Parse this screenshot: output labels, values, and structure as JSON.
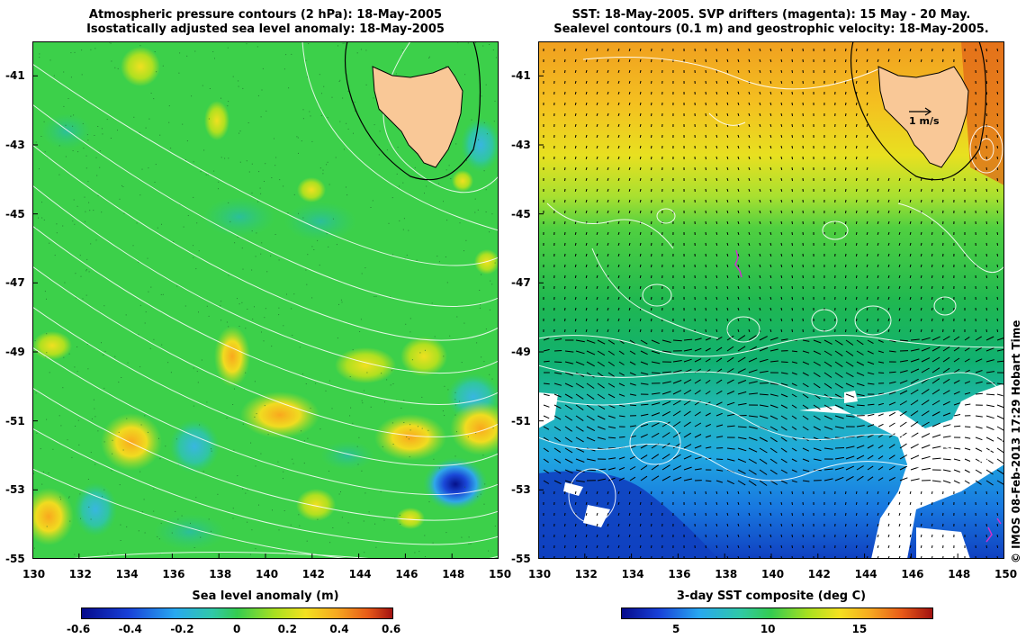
{
  "left_panel": {
    "title_line1": "Atmospheric pressure contours (2 hPa): 18-May-2005",
    "title_line2": "Isostatically adjusted sea level anomaly: 18-May-2005",
    "colorbar_label": "Sea level anomaly (m)",
    "colorbar_ticks": [
      "-0.6",
      "-0.4",
      "-0.2",
      "0",
      "0.2",
      "0.4",
      "0.6"
    ],
    "colorbar_range": [
      -0.6,
      0.6
    ]
  },
  "right_panel": {
    "title_line1": "SST: 18-May-2005. SVP drifters (magenta): 15 May - 20 May.",
    "title_line2": "Sealevel contours (0.1 m) and geostrophic velocity: 18-May-2005.",
    "colorbar_label": "3-day SST composite (deg C)",
    "colorbar_ticks": [
      "5",
      "10",
      "15"
    ],
    "colorbar_range": [
      2,
      19
    ],
    "velocity_scale_label": "1 m/s"
  },
  "axes": {
    "lat_labels": [
      "-41",
      "-43",
      "-45",
      "-47",
      "-49",
      "-51",
      "-53",
      "-55"
    ],
    "lon_labels": [
      "130",
      "132",
      "134",
      "136",
      "138",
      "140",
      "142",
      "144",
      "146",
      "148",
      "150"
    ],
    "lat_range": [
      -55,
      -40
    ],
    "lon_range": [
      130,
      150
    ]
  },
  "land": {
    "name": "Tasmania",
    "color": "#f9c897"
  },
  "credit": "© IMOS 08-Feb-2013 17:29 Hobart Time",
  "colors": {
    "drifter": "#cc33cc",
    "contour": "#ffffff",
    "land": "#f9c897"
  }
}
